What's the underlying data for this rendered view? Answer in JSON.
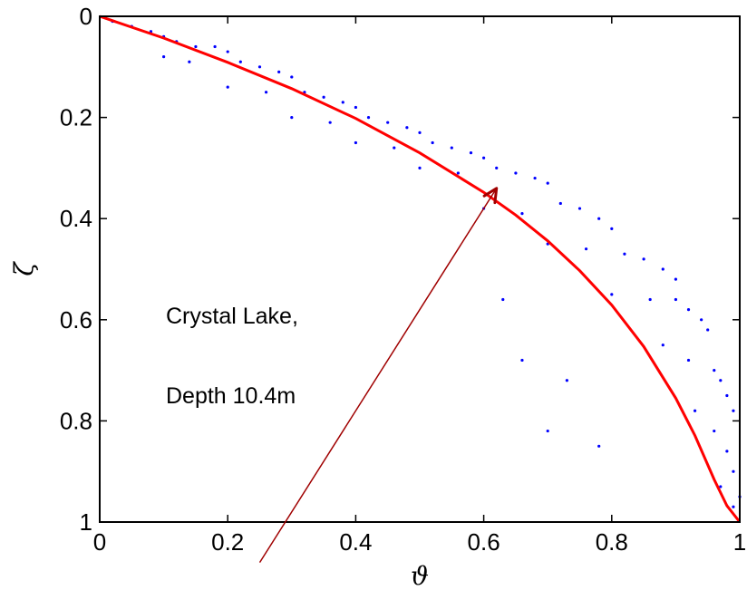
{
  "chart_data": {
    "type": "scatter",
    "title": "",
    "xlabel": "ϑ",
    "ylabel": "ζ",
    "xlim": [
      0,
      1
    ],
    "ylim": [
      1,
      0
    ],
    "y_inverted": true,
    "grid": false,
    "x_ticks": [
      "0",
      "0.2",
      "0.4",
      "0.6",
      "0.8",
      "1"
    ],
    "y_ticks": [
      "0",
      "0.2",
      "0.4",
      "0.6",
      "0.8",
      "1"
    ],
    "annotations": [
      "Crystal Lake,",
      "Depth 10.4m"
    ],
    "colors": {
      "points": "#0000ff",
      "fit_curve": "#ff0000",
      "arrow": "#a00000"
    },
    "series": [
      {
        "kind": "points",
        "x": [
          0.02,
          0.05,
          0.08,
          0.1,
          0.12,
          0.15,
          0.18,
          0.2,
          0.1,
          0.14,
          0.22,
          0.25,
          0.28,
          0.3,
          0.2,
          0.26,
          0.32,
          0.35,
          0.38,
          0.4,
          0.3,
          0.36,
          0.42,
          0.45,
          0.48,
          0.5,
          0.4,
          0.46,
          0.52,
          0.55,
          0.58,
          0.6,
          0.5,
          0.56,
          0.62,
          0.65,
          0.68,
          0.7,
          0.6,
          0.66,
          0.72,
          0.75,
          0.78,
          0.8,
          0.7,
          0.76,
          0.82,
          0.85,
          0.88,
          0.9,
          0.8,
          0.86,
          0.9,
          0.92,
          0.94,
          0.95,
          0.88,
          0.92,
          0.96,
          0.97,
          0.98,
          0.99,
          0.93,
          0.96,
          0.98,
          0.99,
          1.0,
          0.97,
          0.99,
          0.63,
          0.66,
          0.73,
          0.78,
          0.7
        ],
        "y": [
          0.01,
          0.02,
          0.03,
          0.04,
          0.05,
          0.06,
          0.06,
          0.07,
          0.08,
          0.09,
          0.09,
          0.1,
          0.11,
          0.12,
          0.14,
          0.15,
          0.15,
          0.16,
          0.17,
          0.18,
          0.2,
          0.21,
          0.2,
          0.21,
          0.22,
          0.23,
          0.25,
          0.26,
          0.25,
          0.26,
          0.27,
          0.28,
          0.3,
          0.31,
          0.3,
          0.31,
          0.32,
          0.33,
          0.38,
          0.39,
          0.37,
          0.38,
          0.4,
          0.42,
          0.45,
          0.46,
          0.47,
          0.48,
          0.5,
          0.52,
          0.55,
          0.56,
          0.56,
          0.58,
          0.6,
          0.62,
          0.65,
          0.68,
          0.7,
          0.72,
          0.75,
          0.78,
          0.78,
          0.82,
          0.86,
          0.9,
          0.95,
          0.93,
          0.97,
          0.56,
          0.68,
          0.72,
          0.85,
          0.82
        ]
      },
      {
        "kind": "fit_curve",
        "x": [
          0,
          0.1,
          0.2,
          0.3,
          0.4,
          0.5,
          0.6,
          0.65,
          0.7,
          0.75,
          0.8,
          0.85,
          0.9,
          0.93,
          0.96,
          0.98,
          1.0
        ],
        "y": [
          0,
          0.043,
          0.091,
          0.143,
          0.202,
          0.27,
          0.348,
          0.393,
          0.444,
          0.503,
          0.571,
          0.653,
          0.755,
          0.829,
          0.916,
          0.968,
          1.0
        ]
      }
    ],
    "arrow": {
      "tail": [
        0.25,
        1.08
      ],
      "head": [
        0.62,
        0.34
      ]
    }
  }
}
